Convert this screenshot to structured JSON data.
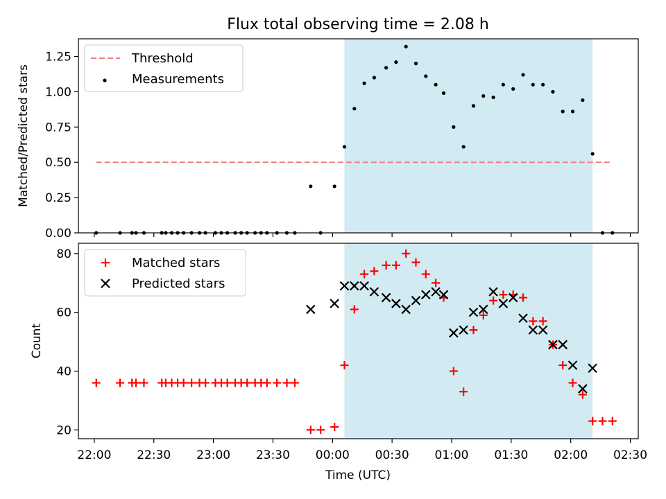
{
  "title": "Flux total observing time = 2.08 h",
  "xlabel": "Time (UTC)",
  "x_ticks": [
    "22:00",
    "22:30",
    "23:00",
    "23:30",
    "00:00",
    "00:30",
    "01:00",
    "01:30",
    "02:00",
    "02:30"
  ],
  "colors": {
    "threshold": "#f08080",
    "measurements": "#000000",
    "matched": "#ff0000",
    "predicted": "#000000",
    "shade": "#add8e6"
  },
  "chart_data": [
    {
      "type": "scatter",
      "panel": "top",
      "ylabel": "Matched/Predicted stars",
      "ylim": [
        0,
        1.375
      ],
      "xlim": [
        "21:52",
        "02:34"
      ],
      "y_ticks": [
        "0.00",
        "0.25",
        "0.50",
        "0.75",
        "1.00",
        "1.25"
      ],
      "shaded_interval": [
        "00:06",
        "02:11"
      ],
      "legend_position": "upper left",
      "threshold": {
        "name": "Threshold",
        "value": 0.5,
        "x_range": [
          "22:01",
          "02:21"
        ],
        "style": "dashed"
      },
      "series": [
        {
          "name": "Measurements",
          "marker": "dot",
          "x": [
            "22:01",
            "22:13",
            "22:19",
            "22:21",
            "22:25",
            "22:34",
            "22:36",
            "22:39",
            "22:42",
            "22:45",
            "22:49",
            "22:53",
            "22:56",
            "23:01",
            "23:04",
            "23:07",
            "23:11",
            "23:14",
            "23:17",
            "23:21",
            "23:24",
            "23:27",
            "23:32",
            "23:37",
            "23:41",
            "23:49",
            "23:54",
            "00:01",
            "00:06",
            "00:11",
            "00:16",
            "00:21",
            "00:27",
            "00:32",
            "00:37",
            "00:42",
            "00:47",
            "00:52",
            "00:56",
            "01:01",
            "01:06",
            "01:11",
            "01:16",
            "01:21",
            "01:26",
            "01:31",
            "01:36",
            "01:41",
            "01:46",
            "01:51",
            "01:56",
            "02:01",
            "02:06",
            "02:11",
            "02:16",
            "02:21"
          ],
          "y": [
            0,
            0,
            0,
            0,
            0,
            0,
            0,
            0,
            0,
            0,
            0,
            0,
            0,
            0,
            0,
            0,
            0,
            0,
            0,
            0,
            0,
            0,
            0,
            0,
            0,
            0.33,
            0,
            0.33,
            0.61,
            0.88,
            1.06,
            1.1,
            1.17,
            1.21,
            1.32,
            1.2,
            1.11,
            1.05,
            0.99,
            0.75,
            0.61,
            0.9,
            0.97,
            0.96,
            1.05,
            1.02,
            1.12,
            1.05,
            1.05,
            1.0,
            0.86,
            0.86,
            0.94,
            0.56,
            0,
            0
          ]
        }
      ]
    },
    {
      "type": "scatter",
      "panel": "bottom",
      "ylabel": "Count",
      "ylim": [
        17,
        83.5
      ],
      "xlim": [
        "21:52",
        "02:34"
      ],
      "y_ticks": [
        "20",
        "40",
        "60",
        "80"
      ],
      "shaded_interval": [
        "00:06",
        "02:11"
      ],
      "legend_position": "upper left",
      "series": [
        {
          "name": "Matched stars",
          "marker": "plus",
          "x": [
            "22:01",
            "22:13",
            "22:19",
            "22:21",
            "22:25",
            "22:34",
            "22:36",
            "22:39",
            "22:42",
            "22:45",
            "22:49",
            "22:53",
            "22:56",
            "23:01",
            "23:04",
            "23:07",
            "23:11",
            "23:14",
            "23:17",
            "23:21",
            "23:24",
            "23:27",
            "23:32",
            "23:37",
            "23:41",
            "23:49",
            "23:54",
            "00:01",
            "00:06",
            "00:11",
            "00:16",
            "00:21",
            "00:27",
            "00:32",
            "00:37",
            "00:42",
            "00:47",
            "00:52",
            "00:56",
            "01:01",
            "01:06",
            "01:11",
            "01:16",
            "01:21",
            "01:26",
            "01:31",
            "01:36",
            "01:41",
            "01:46",
            "01:51",
            "01:56",
            "02:01",
            "02:06",
            "02:11",
            "02:16",
            "02:21"
          ],
          "y": [
            36,
            36,
            36,
            36,
            36,
            36,
            36,
            36,
            36,
            36,
            36,
            36,
            36,
            36,
            36,
            36,
            36,
            36,
            36,
            36,
            36,
            36,
            36,
            36,
            36,
            20,
            20,
            21,
            42,
            61,
            73,
            74,
            76,
            76,
            80,
            77,
            73,
            70,
            65,
            40,
            33,
            54,
            59,
            64,
            66,
            66,
            65,
            57,
            57,
            49,
            42,
            36,
            32,
            23,
            23,
            23
          ]
        },
        {
          "name": "Predicted stars",
          "marker": "x",
          "x": [
            "23:49",
            "00:01",
            "00:06",
            "00:11",
            "00:16",
            "00:21",
            "00:27",
            "00:32",
            "00:37",
            "00:42",
            "00:47",
            "00:52",
            "00:56",
            "01:01",
            "01:06",
            "01:11",
            "01:16",
            "01:21",
            "01:26",
            "01:31",
            "01:36",
            "01:41",
            "01:46",
            "01:51",
            "01:56",
            "02:01",
            "02:06",
            "02:11"
          ],
          "y": [
            61,
            63,
            69,
            69,
            69,
            67,
            65,
            63,
            61,
            64,
            66,
            67,
            66,
            53,
            54,
            60,
            61,
            67,
            63,
            65,
            58,
            54,
            54,
            49,
            49,
            42,
            34,
            41
          ]
        }
      ]
    }
  ]
}
